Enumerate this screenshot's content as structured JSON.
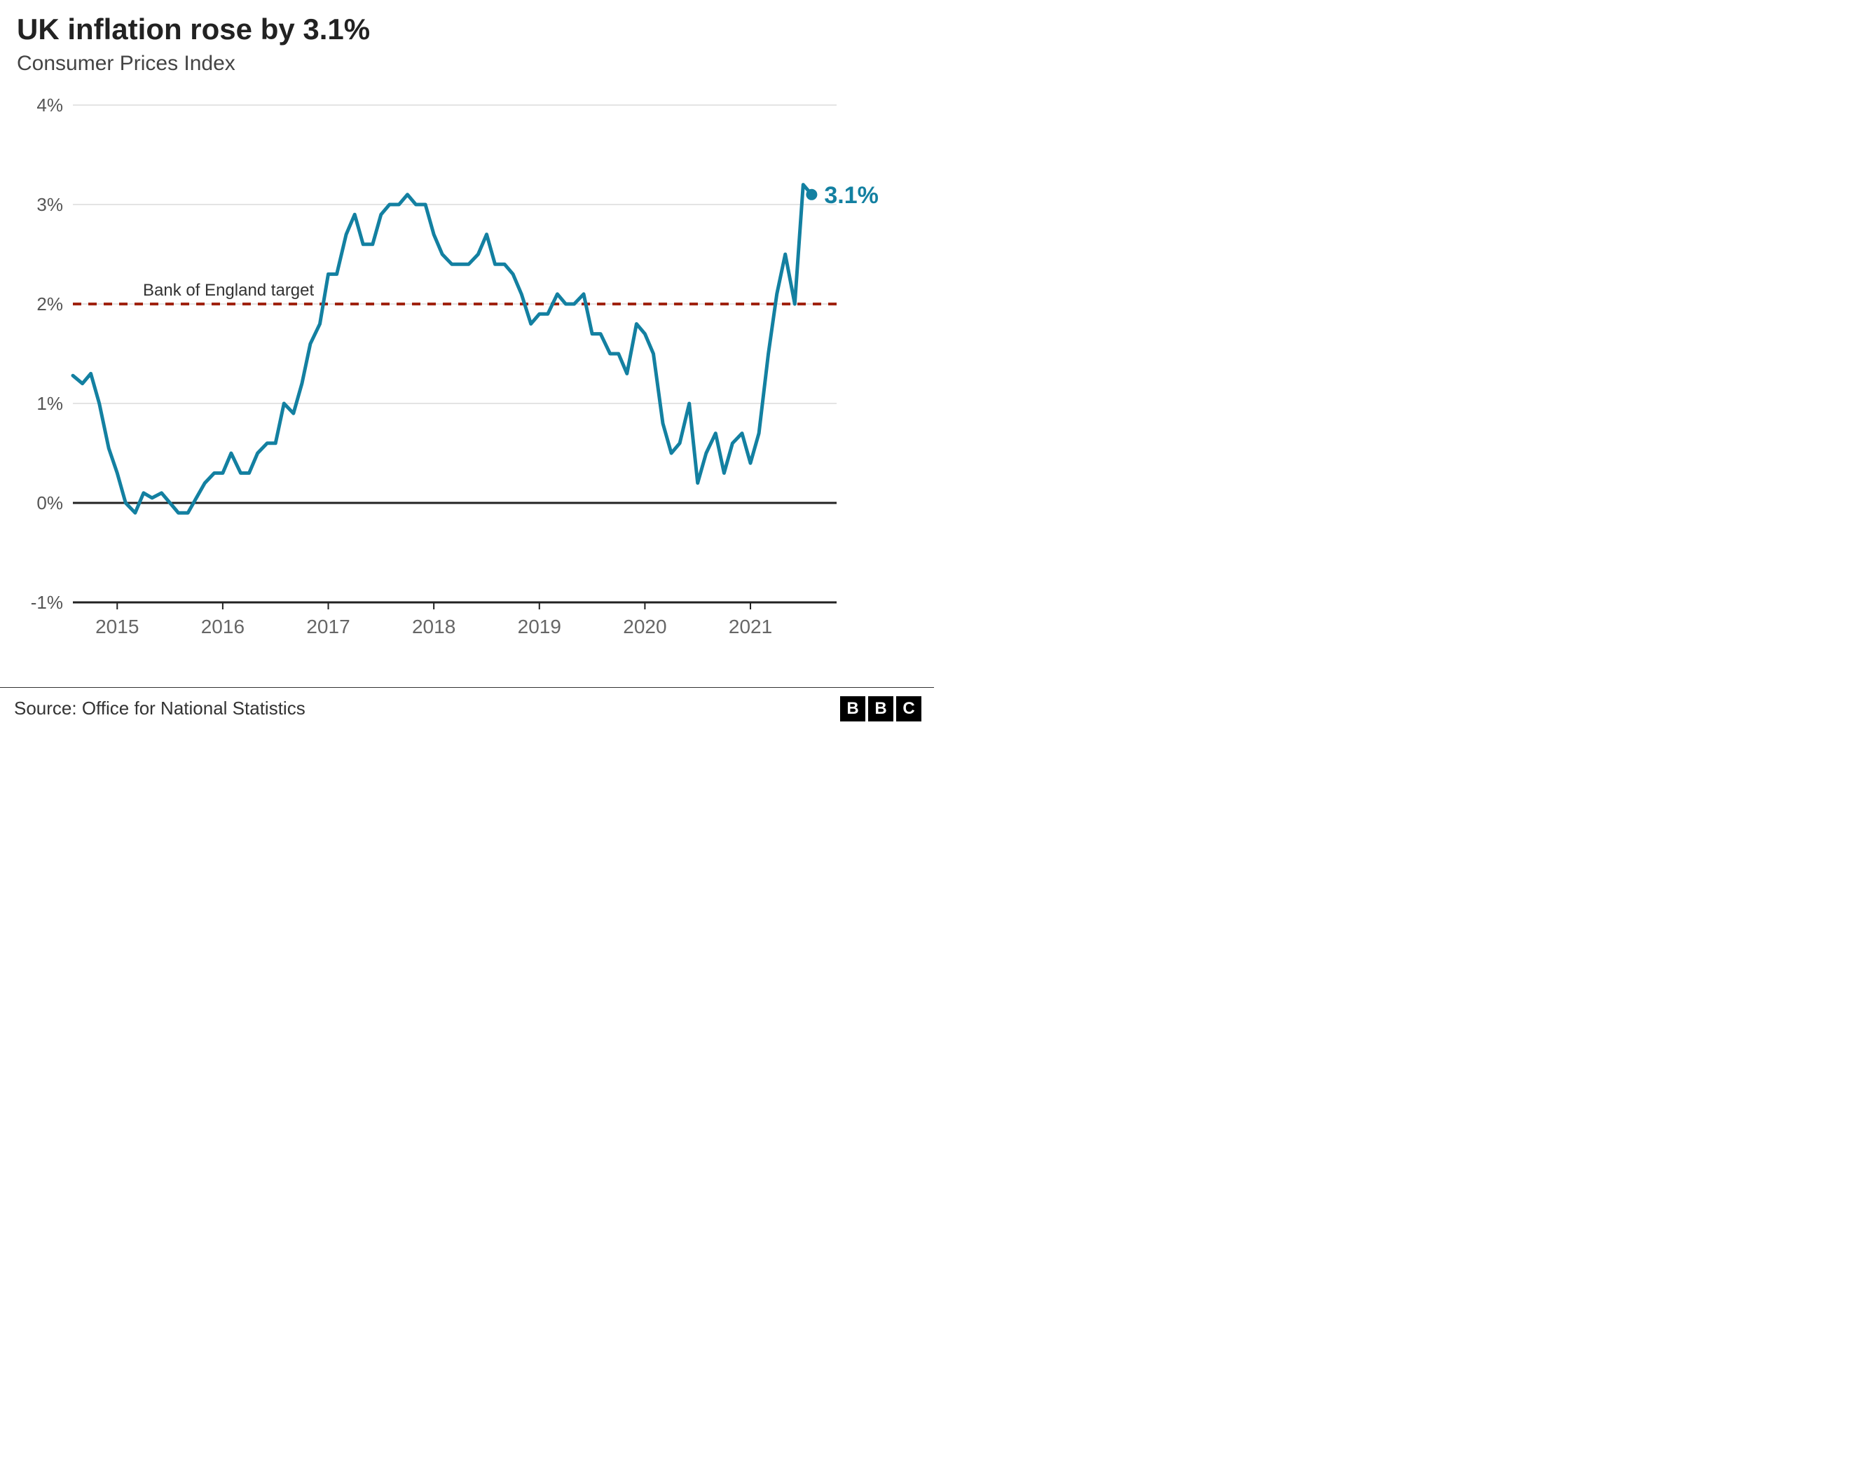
{
  "title": "UK inflation rose by 3.1%",
  "subtitle": "Consumer Prices Index",
  "source": "Source: Office for National Statistics",
  "logo_letters": [
    "B",
    "B",
    "C"
  ],
  "chart": {
    "type": "line",
    "background_color": "#ffffff",
    "grid_color": "#dcdcdc",
    "zero_line_color": "#222222",
    "axis_baseline_color": "#222222",
    "line_color": "#1380a1",
    "line_width": 5,
    "endpoint_marker_radius": 8,
    "endpoint_label": "3.1%",
    "endpoint_label_color": "#1380a1",
    "target_line": {
      "value": 2.0,
      "label": "Bank of England target",
      "color": "#a0220f",
      "dash": "12 10",
      "width": 4
    },
    "y": {
      "min": -1,
      "max": 4,
      "ticks": [
        -1,
        0,
        1,
        2,
        3,
        4
      ],
      "tick_labels": [
        "-1%",
        "0%",
        "1%",
        "2%",
        "3%",
        "4%"
      ],
      "label_fontsize": 26,
      "label_color": "#555555"
    },
    "x": {
      "min": 2014.58,
      "max": 2021.75,
      "ticks": [
        2015,
        2016,
        2017,
        2018,
        2019,
        2020,
        2021
      ],
      "tick_labels": [
        "2015",
        "2016",
        "2017",
        "2018",
        "2019",
        "2020",
        "2021"
      ],
      "label_fontsize": 28,
      "label_color": "#666666"
    },
    "series": [
      {
        "x": 2014.58,
        "y": 1.28
      },
      {
        "x": 2014.67,
        "y": 1.2
      },
      {
        "x": 2014.75,
        "y": 1.3
      },
      {
        "x": 2014.83,
        "y": 1.0
      },
      {
        "x": 2014.92,
        "y": 0.55
      },
      {
        "x": 2015.0,
        "y": 0.3
      },
      {
        "x": 2015.08,
        "y": 0.0
      },
      {
        "x": 2015.17,
        "y": -0.1
      },
      {
        "x": 2015.25,
        "y": 0.1
      },
      {
        "x": 2015.33,
        "y": 0.05
      },
      {
        "x": 2015.42,
        "y": 0.1
      },
      {
        "x": 2015.5,
        "y": 0.0
      },
      {
        "x": 2015.58,
        "y": -0.1
      },
      {
        "x": 2015.67,
        "y": -0.1
      },
      {
        "x": 2015.75,
        "y": 0.05
      },
      {
        "x": 2015.83,
        "y": 0.2
      },
      {
        "x": 2015.92,
        "y": 0.3
      },
      {
        "x": 2016.0,
        "y": 0.3
      },
      {
        "x": 2016.08,
        "y": 0.5
      },
      {
        "x": 2016.17,
        "y": 0.3
      },
      {
        "x": 2016.25,
        "y": 0.3
      },
      {
        "x": 2016.33,
        "y": 0.5
      },
      {
        "x": 2016.42,
        "y": 0.6
      },
      {
        "x": 2016.5,
        "y": 0.6
      },
      {
        "x": 2016.58,
        "y": 1.0
      },
      {
        "x": 2016.67,
        "y": 0.9
      },
      {
        "x": 2016.75,
        "y": 1.2
      },
      {
        "x": 2016.83,
        "y": 1.6
      },
      {
        "x": 2016.92,
        "y": 1.8
      },
      {
        "x": 2017.0,
        "y": 2.3
      },
      {
        "x": 2017.08,
        "y": 2.3
      },
      {
        "x": 2017.17,
        "y": 2.7
      },
      {
        "x": 2017.25,
        "y": 2.9
      },
      {
        "x": 2017.33,
        "y": 2.6
      },
      {
        "x": 2017.42,
        "y": 2.6
      },
      {
        "x": 2017.5,
        "y": 2.9
      },
      {
        "x": 2017.58,
        "y": 3.0
      },
      {
        "x": 2017.67,
        "y": 3.0
      },
      {
        "x": 2017.75,
        "y": 3.1
      },
      {
        "x": 2017.83,
        "y": 3.0
      },
      {
        "x": 2017.92,
        "y": 3.0
      },
      {
        "x": 2018.0,
        "y": 2.7
      },
      {
        "x": 2018.08,
        "y": 2.5
      },
      {
        "x": 2018.17,
        "y": 2.4
      },
      {
        "x": 2018.25,
        "y": 2.4
      },
      {
        "x": 2018.33,
        "y": 2.4
      },
      {
        "x": 2018.42,
        "y": 2.5
      },
      {
        "x": 2018.5,
        "y": 2.7
      },
      {
        "x": 2018.58,
        "y": 2.4
      },
      {
        "x": 2018.67,
        "y": 2.4
      },
      {
        "x": 2018.75,
        "y": 2.3
      },
      {
        "x": 2018.83,
        "y": 2.1
      },
      {
        "x": 2018.92,
        "y": 1.8
      },
      {
        "x": 2019.0,
        "y": 1.9
      },
      {
        "x": 2019.08,
        "y": 1.9
      },
      {
        "x": 2019.17,
        "y": 2.1
      },
      {
        "x": 2019.25,
        "y": 2.0
      },
      {
        "x": 2019.33,
        "y": 2.0
      },
      {
        "x": 2019.42,
        "y": 2.1
      },
      {
        "x": 2019.5,
        "y": 1.7
      },
      {
        "x": 2019.58,
        "y": 1.7
      },
      {
        "x": 2019.67,
        "y": 1.5
      },
      {
        "x": 2019.75,
        "y": 1.5
      },
      {
        "x": 2019.83,
        "y": 1.3
      },
      {
        "x": 2019.92,
        "y": 1.8
      },
      {
        "x": 2020.0,
        "y": 1.7
      },
      {
        "x": 2020.08,
        "y": 1.5
      },
      {
        "x": 2020.17,
        "y": 0.8
      },
      {
        "x": 2020.25,
        "y": 0.5
      },
      {
        "x": 2020.33,
        "y": 0.6
      },
      {
        "x": 2020.42,
        "y": 1.0
      },
      {
        "x": 2020.5,
        "y": 0.2
      },
      {
        "x": 2020.58,
        "y": 0.5
      },
      {
        "x": 2020.67,
        "y": 0.7
      },
      {
        "x": 2020.75,
        "y": 0.3
      },
      {
        "x": 2020.83,
        "y": 0.6
      },
      {
        "x": 2020.92,
        "y": 0.7
      },
      {
        "x": 2021.0,
        "y": 0.4
      },
      {
        "x": 2021.08,
        "y": 0.7
      },
      {
        "x": 2021.17,
        "y": 1.5
      },
      {
        "x": 2021.25,
        "y": 2.1
      },
      {
        "x": 2021.33,
        "y": 2.5
      },
      {
        "x": 2021.42,
        "y": 2.0
      },
      {
        "x": 2021.5,
        "y": 3.2
      },
      {
        "x": 2021.58,
        "y": 3.1
      }
    ]
  }
}
